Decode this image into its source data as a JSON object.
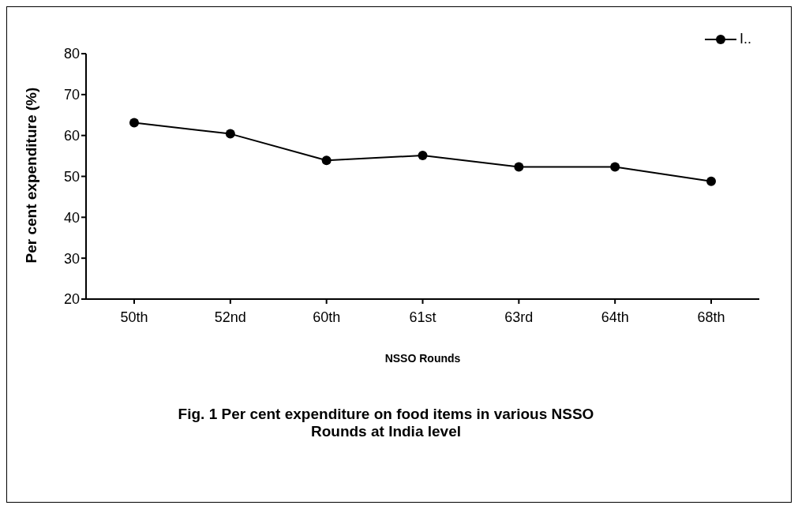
{
  "chart_data": {
    "type": "line",
    "xlabel": "NSSO Rounds",
    "ylabel": "Per cent expenditure (%)",
    "annotations": [
      "Fig. 1 Per cent expenditure on food items in various NSSO Rounds at India level"
    ],
    "categories": [
      "50th",
      "52nd",
      "60th",
      "61st",
      "63rd",
      "64th",
      "68th"
    ],
    "series": [
      {
        "name": "I..",
        "color": "#000000",
        "values": [
          63.1,
          60.4,
          53.9,
          55.1,
          52.3,
          52.3,
          48.8
        ]
      }
    ],
    "ylim": [
      20,
      80
    ],
    "yticks": [
      20,
      30,
      40,
      50,
      60,
      70,
      80
    ],
    "grid": false,
    "legend": "top right",
    "marker": "circle",
    "line_style": "solid"
  }
}
